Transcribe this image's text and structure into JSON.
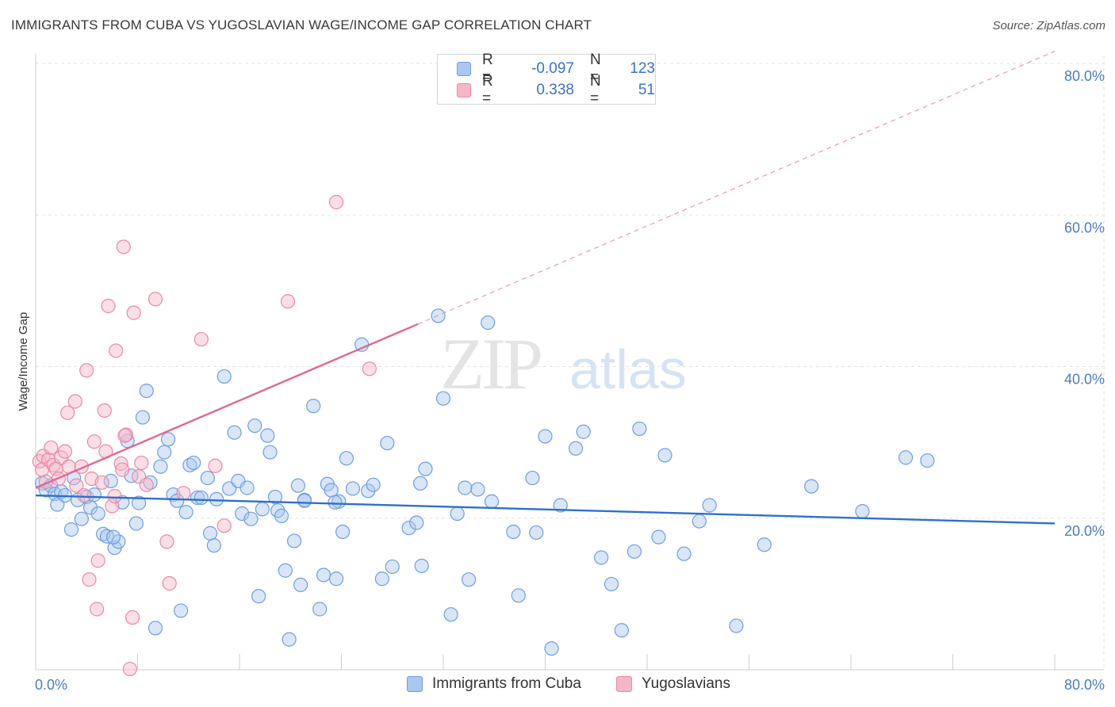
{
  "title": "IMMIGRANTS FROM CUBA VS YUGOSLAVIAN WAGE/INCOME GAP CORRELATION CHART",
  "source": "Source: ZipAtlas.com",
  "watermark": {
    "zip": "ZIP",
    "atlas": "atlas"
  },
  "legend": {
    "rows": [
      {
        "r_label": "R =",
        "r_value": "-0.097",
        "n_label": "N =",
        "n_value": "123",
        "color": "#a9c7ef",
        "border": "#6f9ee0"
      },
      {
        "r_label": "R =",
        "r_value": "0.338",
        "n_label": "N =",
        "n_value": "51",
        "color": "#f6b6c8",
        "border": "#e88aa6"
      }
    ]
  },
  "bottom_legend": [
    {
      "label": "Immigrants from Cuba",
      "color": "#a9c7ef",
      "border": "#6f9ee0"
    },
    {
      "label": "Yugoslavians",
      "color": "#f6b6c8",
      "border": "#e88aa6"
    }
  ],
  "chart_data": {
    "type": "scatter",
    "title": "IMMIGRANTS FROM CUBA VS YUGOSLAVIAN WAGE/INCOME GAP CORRELATION CHART",
    "xlabel": "",
    "ylabel": "Wage/Income Gap",
    "xlim": [
      0,
      80
    ],
    "ylim": [
      0,
      80
    ],
    "x_tick_labels": [
      "0.0%",
      "80.0%"
    ],
    "y_tick_labels": [
      {
        "value": 20,
        "label": "20.0%"
      },
      {
        "value": 40,
        "label": "40.0%"
      },
      {
        "value": 60,
        "label": "60.0%"
      },
      {
        "value": 80,
        "label": "80.0%"
      }
    ],
    "series": [
      {
        "name": "Immigrants from Cuba",
        "color": "#6f9ee0",
        "fill": "#a9c7ef",
        "trend": {
          "x": [
            0,
            80
          ],
          "y": [
            23.0,
            19.3
          ],
          "color": "#2f6fce"
        },
        "points": [
          [
            0.5,
            24.6
          ],
          [
            0.8,
            23.7
          ],
          [
            1.2,
            24.3
          ],
          [
            1.5,
            23.2
          ],
          [
            1.7,
            21.8
          ],
          [
            2.0,
            23.5
          ],
          [
            2.3,
            23.0
          ],
          [
            2.8,
            18.5
          ],
          [
            3.0,
            25.3
          ],
          [
            3.3,
            22.4
          ],
          [
            3.6,
            19.9
          ],
          [
            4.0,
            22.8
          ],
          [
            4.3,
            21.4
          ],
          [
            4.6,
            23.1
          ],
          [
            4.9,
            20.6
          ],
          [
            5.3,
            17.9
          ],
          [
            5.6,
            17.6
          ],
          [
            5.9,
            24.9
          ],
          [
            6.2,
            16.1
          ],
          [
            6.5,
            16.9
          ],
          [
            6.8,
            22.1
          ],
          [
            7.2,
            30.2
          ],
          [
            7.5,
            25.6
          ],
          [
            7.9,
            19.3
          ],
          [
            8.1,
            22.0
          ],
          [
            8.4,
            33.3
          ],
          [
            8.7,
            36.8
          ],
          [
            9.0,
            24.7
          ],
          [
            9.4,
            5.5
          ],
          [
            9.8,
            26.8
          ],
          [
            10.1,
            28.7
          ],
          [
            10.4,
            30.4
          ],
          [
            10.8,
            23.1
          ],
          [
            11.1,
            22.3
          ],
          [
            11.4,
            7.8
          ],
          [
            11.8,
            20.8
          ],
          [
            12.1,
            27.0
          ],
          [
            12.4,
            27.3
          ],
          [
            12.7,
            22.7
          ],
          [
            13.0,
            22.7
          ],
          [
            13.5,
            25.3
          ],
          [
            13.7,
            18.0
          ],
          [
            14.0,
            16.4
          ],
          [
            14.2,
            22.5
          ],
          [
            14.8,
            38.7
          ],
          [
            15.2,
            23.9
          ],
          [
            15.6,
            31.3
          ],
          [
            15.9,
            24.9
          ],
          [
            16.2,
            20.6
          ],
          [
            16.6,
            24.0
          ],
          [
            16.9,
            19.9
          ],
          [
            17.2,
            32.2
          ],
          [
            17.5,
            9.7
          ],
          [
            17.8,
            21.2
          ],
          [
            18.2,
            30.9
          ],
          [
            18.4,
            28.7
          ],
          [
            18.8,
            22.8
          ],
          [
            19.0,
            21.0
          ],
          [
            19.3,
            20.3
          ],
          [
            19.6,
            13.1
          ],
          [
            19.9,
            4.0
          ],
          [
            20.3,
            17.0
          ],
          [
            20.6,
            24.3
          ],
          [
            20.8,
            11.2
          ],
          [
            21.1,
            22.4
          ],
          [
            21.8,
            34.8
          ],
          [
            22.3,
            8.0
          ],
          [
            22.6,
            12.5
          ],
          [
            22.9,
            24.5
          ],
          [
            23.2,
            23.7
          ],
          [
            23.6,
            12.0
          ],
          [
            23.8,
            22.2
          ],
          [
            24.1,
            18.2
          ],
          [
            24.4,
            27.9
          ],
          [
            24.9,
            23.9
          ],
          [
            25.6,
            42.9
          ],
          [
            26.1,
            23.6
          ],
          [
            26.5,
            24.4
          ],
          [
            27.2,
            12.0
          ],
          [
            27.6,
            29.9
          ],
          [
            28.0,
            13.6
          ],
          [
            29.3,
            18.7
          ],
          [
            29.9,
            19.4
          ],
          [
            30.2,
            24.6
          ],
          [
            30.3,
            13.7
          ],
          [
            30.6,
            26.5
          ],
          [
            31.6,
            46.7
          ],
          [
            32.0,
            35.8
          ],
          [
            32.6,
            7.3
          ],
          [
            33.1,
            20.6
          ],
          [
            33.7,
            24.0
          ],
          [
            34.0,
            11.9
          ],
          [
            34.7,
            23.8
          ],
          [
            35.5,
            45.8
          ],
          [
            35.8,
            22.2
          ],
          [
            37.5,
            18.2
          ],
          [
            37.9,
            9.8
          ],
          [
            39.0,
            25.3
          ],
          [
            39.3,
            18.1
          ],
          [
            40.0,
            30.8
          ],
          [
            40.5,
            2.8
          ],
          [
            41.2,
            21.7
          ],
          [
            42.4,
            29.2
          ],
          [
            43.0,
            31.4
          ],
          [
            44.4,
            14.8
          ],
          [
            45.2,
            11.3
          ],
          [
            46.0,
            5.2
          ],
          [
            47.0,
            15.6
          ],
          [
            47.4,
            31.8
          ],
          [
            48.9,
            17.5
          ],
          [
            49.4,
            28.3
          ],
          [
            50.9,
            15.3
          ],
          [
            52.1,
            19.6
          ],
          [
            52.9,
            21.7
          ],
          [
            55.0,
            5.8
          ],
          [
            57.2,
            16.5
          ],
          [
            60.9,
            24.2
          ],
          [
            64.9,
            20.9
          ],
          [
            68.3,
            28.0
          ],
          [
            70.0,
            27.6
          ],
          [
            21.1,
            22.3
          ],
          [
            23.5,
            22.1
          ],
          [
            6.1,
            17.5
          ]
        ]
      },
      {
        "name": "Yugoslavians",
        "color": "#e88aa6",
        "fill": "#f6b6c8",
        "trend": {
          "x": [
            0,
            30
          ],
          "y": [
            24.0,
            45.6
          ],
          "color": "#e06990"
        },
        "trend_ext": {
          "x": [
            30,
            80
          ],
          "y": [
            45.6,
            81.6
          ]
        },
        "points": [
          [
            0.3,
            27.5
          ],
          [
            0.5,
            26.4
          ],
          [
            0.6,
            28.2
          ],
          [
            0.8,
            24.8
          ],
          [
            1.0,
            27.7
          ],
          [
            1.2,
            29.3
          ],
          [
            1.4,
            27.0
          ],
          [
            1.6,
            26.5
          ],
          [
            1.8,
            25.2
          ],
          [
            2.0,
            28.0
          ],
          [
            2.3,
            28.8
          ],
          [
            2.6,
            26.8
          ],
          [
            2.5,
            33.9
          ],
          [
            3.1,
            35.4
          ],
          [
            3.2,
            24.3
          ],
          [
            3.6,
            26.8
          ],
          [
            3.8,
            23.0
          ],
          [
            4.0,
            39.5
          ],
          [
            4.2,
            11.9
          ],
          [
            4.4,
            25.2
          ],
          [
            4.6,
            30.1
          ],
          [
            4.8,
            8.0
          ],
          [
            4.9,
            14.4
          ],
          [
            5.2,
            24.7
          ],
          [
            5.4,
            34.2
          ],
          [
            5.5,
            28.8
          ],
          [
            5.7,
            48.0
          ],
          [
            6.0,
            21.6
          ],
          [
            6.2,
            22.9
          ],
          [
            6.3,
            42.1
          ],
          [
            6.7,
            27.2
          ],
          [
            6.8,
            26.4
          ],
          [
            6.9,
            55.8
          ],
          [
            7.1,
            31.0
          ],
          [
            7.4,
            0.1
          ],
          [
            7.6,
            6.9
          ],
          [
            7.7,
            47.1
          ],
          [
            8.1,
            25.5
          ],
          [
            8.3,
            27.3
          ],
          [
            8.7,
            24.4
          ],
          [
            9.4,
            48.9
          ],
          [
            10.3,
            16.9
          ],
          [
            10.5,
            11.4
          ],
          [
            11.6,
            23.3
          ],
          [
            13.0,
            43.6
          ],
          [
            14.1,
            26.9
          ],
          [
            14.8,
            19.0
          ],
          [
            19.8,
            48.6
          ],
          [
            23.6,
            61.7
          ],
          [
            26.2,
            39.7
          ],
          [
            7.0,
            30.9
          ]
        ]
      }
    ]
  }
}
